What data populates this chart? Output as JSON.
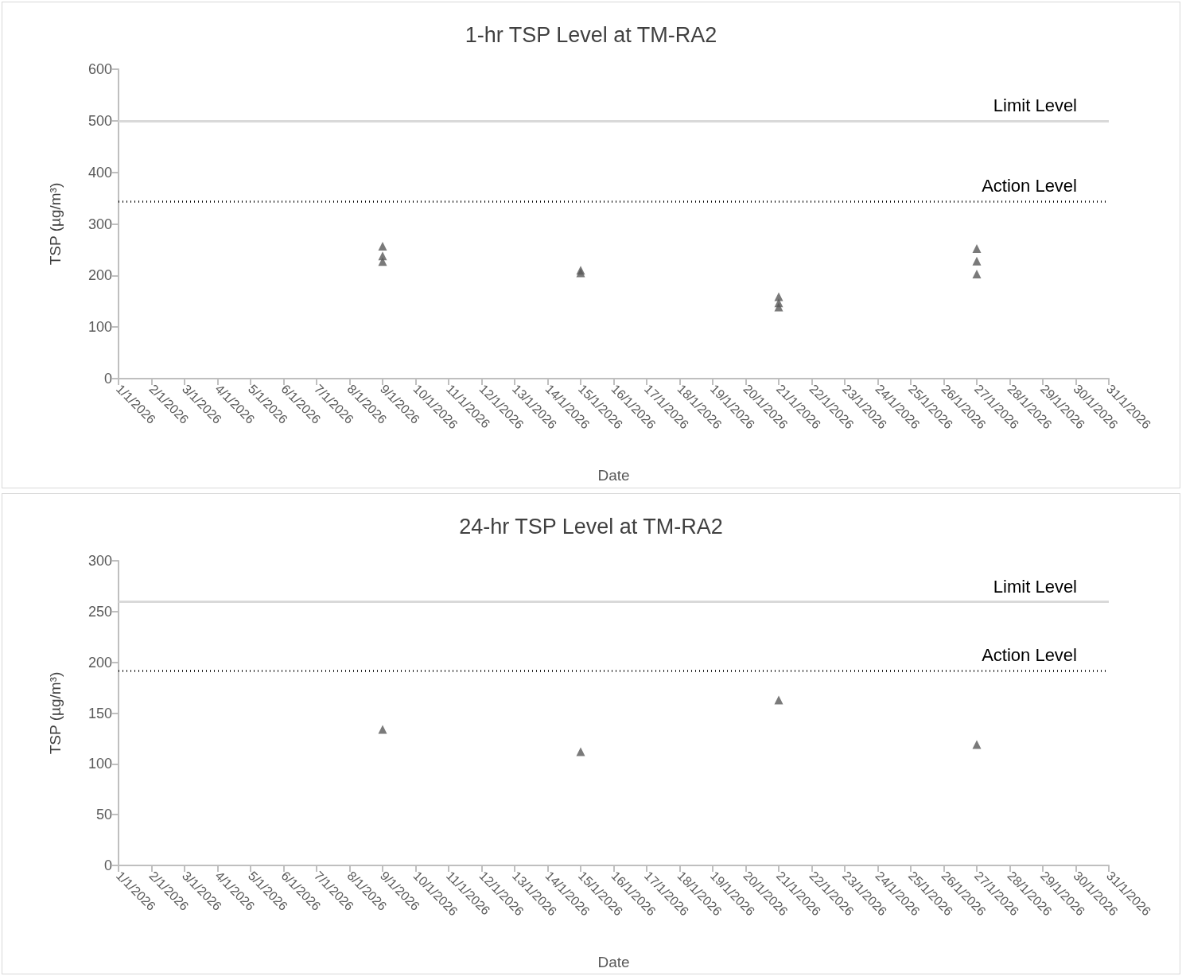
{
  "chart_data": [
    {
      "type": "scatter",
      "title": "1-hr TSP Level at TM-RA2",
      "xlabel": "Date",
      "ylabel": "TSP (µg/m³)",
      "marker": "triangle",
      "xlim": [
        "2026-01-01",
        "2026-01-31"
      ],
      "xticks": [
        {
          "value": "2026-01-01",
          "label": "1/1/2026"
        },
        {
          "value": "2026-01-02",
          "label": "2/1/2026"
        },
        {
          "value": "2026-01-03",
          "label": "3/1/2026"
        },
        {
          "value": "2026-01-04",
          "label": "4/1/2026"
        },
        {
          "value": "2026-01-05",
          "label": "5/1/2026"
        },
        {
          "value": "2026-01-06",
          "label": "6/1/2026"
        },
        {
          "value": "2026-01-07",
          "label": "7/1/2026"
        },
        {
          "value": "2026-01-08",
          "label": "8/1/2026"
        },
        {
          "value": "2026-01-09",
          "label": "9/1/2026"
        },
        {
          "value": "2026-01-10",
          "label": "10/1/2026"
        },
        {
          "value": "2026-01-11",
          "label": "11/1/2026"
        },
        {
          "value": "2026-01-12",
          "label": "12/1/2026"
        },
        {
          "value": "2026-01-13",
          "label": "13/1/2026"
        },
        {
          "value": "2026-01-14",
          "label": "14/1/2026"
        },
        {
          "value": "2026-01-15",
          "label": "15/1/2026"
        },
        {
          "value": "2026-01-16",
          "label": "16/1/2026"
        },
        {
          "value": "2026-01-17",
          "label": "17/1/2026"
        },
        {
          "value": "2026-01-18",
          "label": "18/1/2026"
        },
        {
          "value": "2026-01-19",
          "label": "19/1/2026"
        },
        {
          "value": "2026-01-20",
          "label": "20/1/2026"
        },
        {
          "value": "2026-01-21",
          "label": "21/1/2026"
        },
        {
          "value": "2026-01-22",
          "label": "22/1/2026"
        },
        {
          "value": "2026-01-23",
          "label": "23/1/2026"
        },
        {
          "value": "2026-01-24",
          "label": "24/1/2026"
        },
        {
          "value": "2026-01-25",
          "label": "25/1/2026"
        },
        {
          "value": "2026-01-26",
          "label": "26/1/2026"
        },
        {
          "value": "2026-01-27",
          "label": "27/1/2026"
        },
        {
          "value": "2026-01-28",
          "label": "28/1/2026"
        },
        {
          "value": "2026-01-29",
          "label": "29/1/2026"
        },
        {
          "value": "2026-01-30",
          "label": "30/1/2026"
        },
        {
          "value": "2026-01-31",
          "label": "31/1/2026"
        }
      ],
      "ylim": [
        0,
        600
      ],
      "yticks": [
        0,
        100,
        200,
        300,
        400,
        500,
        600
      ],
      "series": [
        {
          "color": "#595959",
          "x": [
            "2026-01-09",
            "2026-01-09",
            "2026-01-09",
            "2026-01-15",
            "2026-01-15",
            "2026-01-21",
            "2026-01-21",
            "2026-01-21",
            "2026-01-27",
            "2026-01-27",
            "2026-01-27"
          ],
          "values": [
            257,
            238,
            227,
            210,
            205,
            159,
            147,
            139,
            252,
            228,
            203
          ]
        }
      ],
      "ref_lines": [
        {
          "axis": "y",
          "value": 500,
          "label": "Limit Level",
          "color": "#d9d9d9",
          "line_style": "solid"
        },
        {
          "axis": "y",
          "value": 344,
          "label": "Action Level",
          "color": "#000000",
          "line_style": "dotted"
        }
      ]
    },
    {
      "type": "scatter",
      "title": "24-hr TSP Level at TM-RA2",
      "xlabel": "Date",
      "ylabel": "TSP (µg/m³)",
      "marker": "triangle",
      "xlim": [
        "2026-01-01",
        "2026-01-31"
      ],
      "xticks": [
        {
          "value": "2026-01-01",
          "label": "1/1/2026"
        },
        {
          "value": "2026-01-02",
          "label": "2/1/2026"
        },
        {
          "value": "2026-01-03",
          "label": "3/1/2026"
        },
        {
          "value": "2026-01-04",
          "label": "4/1/2026"
        },
        {
          "value": "2026-01-05",
          "label": "5/1/2026"
        },
        {
          "value": "2026-01-06",
          "label": "6/1/2026"
        },
        {
          "value": "2026-01-07",
          "label": "7/1/2026"
        },
        {
          "value": "2026-01-08",
          "label": "8/1/2026"
        },
        {
          "value": "2026-01-09",
          "label": "9/1/2026"
        },
        {
          "value": "2026-01-10",
          "label": "10/1/2026"
        },
        {
          "value": "2026-01-11",
          "label": "11/1/2026"
        },
        {
          "value": "2026-01-12",
          "label": "12/1/2026"
        },
        {
          "value": "2026-01-13",
          "label": "13/1/2026"
        },
        {
          "value": "2026-01-14",
          "label": "14/1/2026"
        },
        {
          "value": "2026-01-15",
          "label": "15/1/2026"
        },
        {
          "value": "2026-01-16",
          "label": "16/1/2026"
        },
        {
          "value": "2026-01-17",
          "label": "17/1/2026"
        },
        {
          "value": "2026-01-18",
          "label": "18/1/2026"
        },
        {
          "value": "2026-01-19",
          "label": "19/1/2026"
        },
        {
          "value": "2026-01-20",
          "label": "20/1/2026"
        },
        {
          "value": "2026-01-21",
          "label": "21/1/2026"
        },
        {
          "value": "2026-01-22",
          "label": "22/1/2026"
        },
        {
          "value": "2026-01-23",
          "label": "23/1/2026"
        },
        {
          "value": "2026-01-24",
          "label": "24/1/2026"
        },
        {
          "value": "2026-01-25",
          "label": "25/1/2026"
        },
        {
          "value": "2026-01-26",
          "label": "26/1/2026"
        },
        {
          "value": "2026-01-27",
          "label": "27/1/2026"
        },
        {
          "value": "2026-01-28",
          "label": "28/1/2026"
        },
        {
          "value": "2026-01-29",
          "label": "29/1/2026"
        },
        {
          "value": "2026-01-30",
          "label": "30/1/2026"
        },
        {
          "value": "2026-01-31",
          "label": "31/1/2026"
        }
      ],
      "ylim": [
        0,
        300
      ],
      "yticks": [
        0,
        50,
        100,
        150,
        200,
        250,
        300
      ],
      "series": [
        {
          "color": "#595959",
          "x": [
            "2026-01-09",
            "2026-01-15",
            "2026-01-21",
            "2026-01-27"
          ],
          "values": [
            134,
            112,
            163,
            119
          ]
        }
      ],
      "ref_lines": [
        {
          "axis": "y",
          "value": 260,
          "label": "Limit Level",
          "color": "#d9d9d9",
          "line_style": "solid"
        },
        {
          "axis": "y",
          "value": 192,
          "label": "Action Level",
          "color": "#000000",
          "line_style": "dotted"
        }
      ]
    }
  ]
}
